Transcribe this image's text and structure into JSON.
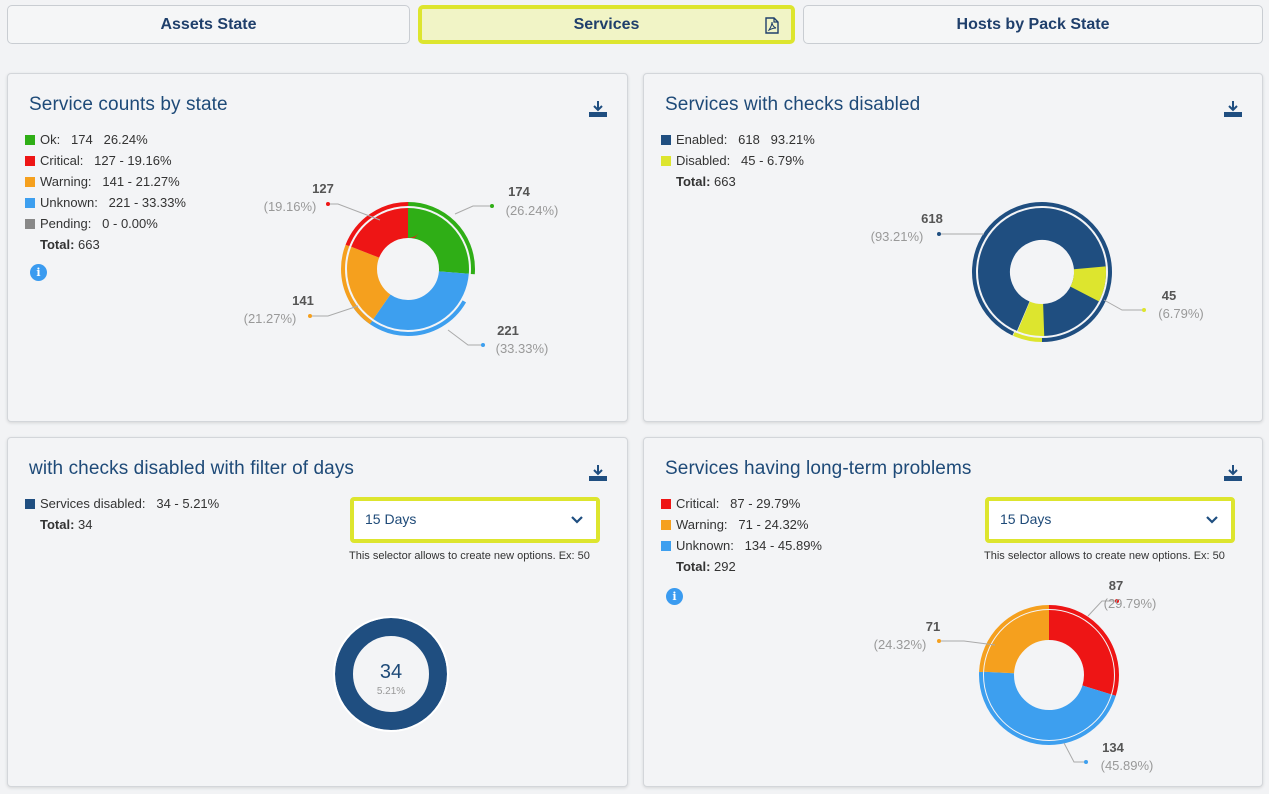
{
  "tabs": [
    {
      "label": "Assets State"
    },
    {
      "label": "Services"
    },
    {
      "label": "Hosts by Pack State"
    }
  ],
  "card1": {
    "title": "Service counts by state",
    "legend": [
      {
        "text": "Ok:   174   26.24%",
        "color": "#2fae16"
      },
      {
        "text": "Critical:   127 - 19.16%",
        "color": "#ee1515"
      },
      {
        "text": "Warning:   141 - 21.27%",
        "color": "#f5a01e"
      },
      {
        "text": "Unknown:   221 - 33.33%",
        "color": "#3d9fef"
      },
      {
        "text": "Pending:   0 - 0.00%",
        "color": "#888888"
      }
    ],
    "total_label": "Total:",
    "total_value": " 663",
    "labels": {
      "ok_val": "174",
      "ok_pct": "(26.24%)",
      "crit_val": "127",
      "crit_pct": "(19.16%)",
      "warn_val": "141",
      "warn_pct": "(21.27%)",
      "unk_val": "221",
      "unk_pct": "(33.33%)"
    }
  },
  "card2": {
    "title": "Services with checks disabled",
    "legend": [
      {
        "text": "Enabled:   618   93.21%",
        "color": "#1f4e80"
      },
      {
        "text": "Disabled:   45 - 6.79%",
        "color": "#dde52e"
      }
    ],
    "total_label": "Total:",
    "total_value": " 663",
    "labels": {
      "en_val": "618",
      "en_pct": "(93.21%)",
      "dis_val": "45",
      "dis_pct": "(6.79%)"
    }
  },
  "card3": {
    "title": "with checks disabled with filter of days",
    "legend": [
      {
        "text": "Services disabled:   34 - 5.21%",
        "color": "#1f4e80"
      }
    ],
    "total_label": "Total:",
    "total_value": " 34",
    "selector": {
      "value": "15 Days",
      "hint": "This selector allows to create new options. Ex: 50"
    },
    "center_value": "34",
    "center_pct": "5.21%"
  },
  "card4": {
    "title": "Services having long-term problems",
    "legend": [
      {
        "text": "Critical:   87 - 29.79%",
        "color": "#ee1515"
      },
      {
        "text": "Warning:   71 - 24.32%",
        "color": "#f5a01e"
      },
      {
        "text": "Unknown:   134 - 45.89%",
        "color": "#3d9fef"
      }
    ],
    "total_label": "Total:",
    "total_value": " 292",
    "selector": {
      "value": "15 Days",
      "hint": "This selector allows to create new options. Ex: 50"
    },
    "labels": {
      "crit_val": "87",
      "crit_pct": "(29.79%)",
      "warn_val": "71",
      "warn_pct": "(24.32%)",
      "unk_val": "134",
      "unk_pct": "(45.89%)"
    }
  },
  "colors": {
    "ok": "#2fae16",
    "critical": "#ee1515",
    "warning": "#f5a01e",
    "unknown": "#3d9fef",
    "enabled": "#1f4e80",
    "disabled": "#dde52e",
    "accent": "#dde52e",
    "title": "#1e4a78"
  },
  "icons": [
    "pdf-icon",
    "download-icon",
    "info-icon",
    "chevron-down-icon"
  ]
}
